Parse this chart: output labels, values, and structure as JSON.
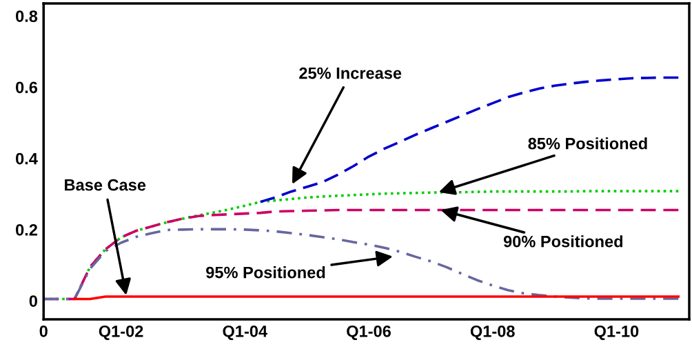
{
  "chart_data": {
    "type": "line",
    "ylim": [
      -0.052,
      0.835
    ],
    "categories": [
      "0",
      null,
      null,
      null,
      null,
      "Q1-02",
      null,
      null,
      null,
      null,
      null,
      null,
      null,
      "Q1-04",
      null,
      null,
      null,
      null,
      null,
      null,
      null,
      "Q1-06",
      null,
      null,
      null,
      null,
      null,
      null,
      null,
      "Q1-08",
      null,
      null,
      null,
      null,
      null,
      null,
      null,
      "Q1-10",
      null,
      null,
      null,
      null
    ],
    "yticks": [
      0,
      0.2,
      0.4,
      0.6,
      0.8
    ],
    "grid": false,
    "legend": false,
    "marker": "none",
    "series": [
      {
        "color": "#0000cc",
        "line_style": "dashed",
        "values": [
          null,
          null,
          null,
          null,
          null,
          null,
          null,
          null,
          null,
          null,
          null,
          null,
          null,
          null,
          0.278,
          0.291,
          0.307,
          0.32,
          0.333,
          0.354,
          0.378,
          0.405,
          0.427,
          0.446,
          0.466,
          0.484,
          0.502,
          0.52,
          0.538,
          0.555,
          0.572,
          0.585,
          0.596,
          0.604,
          0.61,
          0.615,
          0.619,
          0.622,
          0.625,
          0.626,
          0.627,
          0.627
        ]
      },
      {
        "color": "#00cc00",
        "line_style": "dotted",
        "values": [
          0.005,
          0.005,
          0.005,
          0.095,
          0.145,
          0.178,
          0.197,
          0.209,
          0.221,
          0.231,
          0.24,
          0.248,
          0.257,
          0.267,
          0.278,
          0.282,
          0.286,
          0.29,
          0.293,
          0.295,
          0.297,
          0.299,
          0.301,
          0.302,
          0.303,
          0.304,
          0.305,
          0.305,
          0.306,
          0.307,
          0.307,
          0.307,
          0.307,
          0.307,
          0.307,
          0.308,
          0.308,
          0.308,
          0.308,
          0.308,
          0.308,
          0.308
        ]
      },
      {
        "color": "#cc0066",
        "line_style": "dashed",
        "values": [
          0.005,
          0.005,
          0.005,
          0.095,
          0.145,
          0.178,
          0.197,
          0.209,
          0.221,
          0.231,
          0.238,
          0.241,
          0.243,
          0.245,
          0.247,
          0.251,
          0.252,
          0.253,
          0.254,
          0.255,
          0.255,
          0.255,
          0.255,
          0.255,
          0.255,
          0.255,
          0.255,
          0.255,
          0.255,
          0.255,
          0.255,
          0.255,
          0.255,
          0.255,
          0.255,
          0.255,
          0.255,
          0.255,
          0.255,
          0.255,
          0.255,
          0.255
        ]
      },
      {
        "color": "#6666a0",
        "line_style": "dashdot",
        "values": [
          0.005,
          0.005,
          0.005,
          0.09,
          0.14,
          0.163,
          0.18,
          0.19,
          0.199,
          0.2,
          0.201,
          0.201,
          0.201,
          0.2,
          0.198,
          0.195,
          0.19,
          0.185,
          0.179,
          0.173,
          0.165,
          0.158,
          0.149,
          0.138,
          0.124,
          0.111,
          0.095,
          0.076,
          0.058,
          0.043,
          0.03,
          0.021,
          0.016,
          0.012,
          0.009,
          0.007,
          0.006,
          0.006,
          0.006,
          0.006,
          0.006,
          0.006
        ]
      },
      {
        "color": "#ff0000",
        "line_style": "solid",
        "values": [
          null,
          null,
          0.005,
          0.005,
          0.012,
          0.012,
          0.012,
          0.012,
          0.012,
          0.012,
          0.012,
          0.012,
          0.012,
          0.012,
          0.012,
          0.012,
          0.012,
          0.012,
          0.012,
          0.012,
          0.012,
          0.012,
          0.012,
          0.012,
          0.012,
          0.012,
          0.012,
          0.012,
          0.012,
          0.012,
          0.012,
          0.012,
          0.012,
          0.012,
          0.012,
          0.012,
          0.012,
          0.012,
          0.012,
          0.012,
          0.012,
          0.012
        ]
      }
    ],
    "annotations": [
      "25% Increase",
      {
        "text": "85% Positioned",
        "y": 0.305
      },
      {
        "text": "90% Positioned",
        "y": 0.255
      },
      "95% Positioned",
      "Base Case"
    ]
  }
}
